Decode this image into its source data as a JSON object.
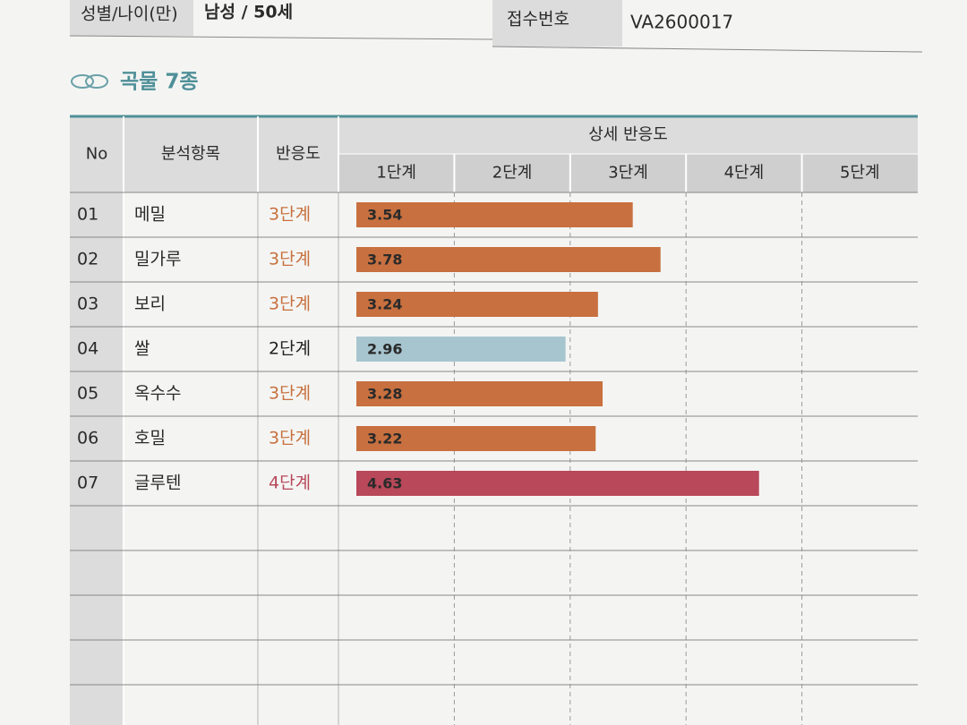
{
  "info": {
    "gender_age_label": "성별/나이(만)",
    "gender_age": "남성 / 50세",
    "receipt_label": "접수번호",
    "receipt": "VA2600017"
  },
  "section_title": "곡물 7종",
  "table": {
    "headers": {
      "no": "No",
      "item": "분석항목",
      "level": "반응도",
      "detail": "상세 반응도"
    },
    "levels": [
      "1단계",
      "2단계",
      "3단계",
      "4단계",
      "5단계"
    ],
    "rows": [
      {
        "no": "01",
        "item": "메밀",
        "level": "3단계",
        "value": 3.54,
        "color": "#c8703f"
      },
      {
        "no": "02",
        "item": "밀가루",
        "level": "3단계",
        "value": 3.78,
        "color": "#c8703f"
      },
      {
        "no": "03",
        "item": "보리",
        "level": "3단계",
        "value": 3.24,
        "color": "#c8703f"
      },
      {
        "no": "04",
        "item": "쌀",
        "level": "2단계",
        "value": 2.96,
        "color": "#a7c5cf"
      },
      {
        "no": "05",
        "item": "옥수수",
        "level": "3단계",
        "value": 3.28,
        "color": "#c8703f"
      },
      {
        "no": "06",
        "item": "호밀",
        "level": "3단계",
        "value": 3.22,
        "color": "#c8703f"
      },
      {
        "no": "07",
        "item": "글루텐",
        "level": "4단계",
        "value": 4.63,
        "color": "#b8485a"
      }
    ]
  }
}
